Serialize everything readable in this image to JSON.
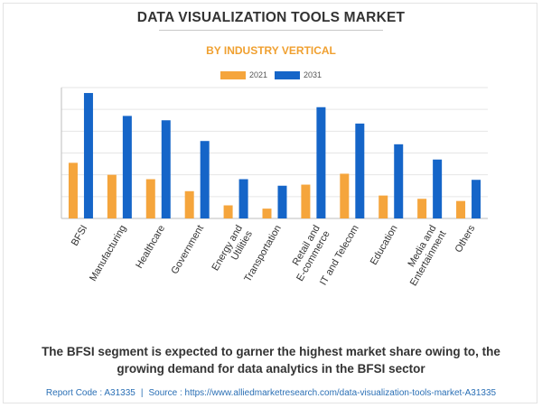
{
  "header": {
    "title": "DATA VISUALIZATION TOOLS MARKET",
    "subtitle": "BY INDUSTRY VERTICAL"
  },
  "caption": "The BFSI segment is expected to garner the highest market share owing to, the growing demand for data analytics in the BFSI sector",
  "footer": {
    "report_code": "Report Code : A31335",
    "separator": "|",
    "source": "Source : https://www.alliedmarketresearch.com/data-visualization-tools-market-A31335"
  },
  "colors": {
    "series_2021": "#f5a53c",
    "series_2031": "#1565c8",
    "grid": "#e6e6e6",
    "axis": "#bdbdbd",
    "tick_label": "#333333"
  },
  "chart_data": {
    "type": "bar",
    "title": "DATA VISUALIZATION TOOLS MARKET",
    "subtitle": "BY INDUSTRY VERTICAL",
    "xlabel": "",
    "ylabel": "",
    "ylim": [
      0,
      6
    ],
    "grid": true,
    "legend": "top-center",
    "categories": [
      [
        "BFSI"
      ],
      [
        "Manufacturing"
      ],
      [
        "Healthcare"
      ],
      [
        "Government"
      ],
      [
        "Energy and",
        "Utilities"
      ],
      [
        "Transportation"
      ],
      [
        "Retail and",
        "E-commerce"
      ],
      [
        "IT and Telecom"
      ],
      [
        "Education"
      ],
      [
        "Media and",
        "Entertainment"
      ],
      [
        "Others"
      ]
    ],
    "series": [
      {
        "name": "2021",
        "values": [
          2.55,
          2.0,
          1.8,
          1.25,
          0.6,
          0.45,
          1.55,
          2.05,
          1.05,
          0.9,
          0.8
        ]
      },
      {
        "name": "2031",
        "values": [
          5.75,
          4.7,
          4.5,
          3.55,
          1.8,
          1.5,
          5.1,
          4.35,
          3.4,
          2.7,
          1.77
        ]
      }
    ]
  }
}
